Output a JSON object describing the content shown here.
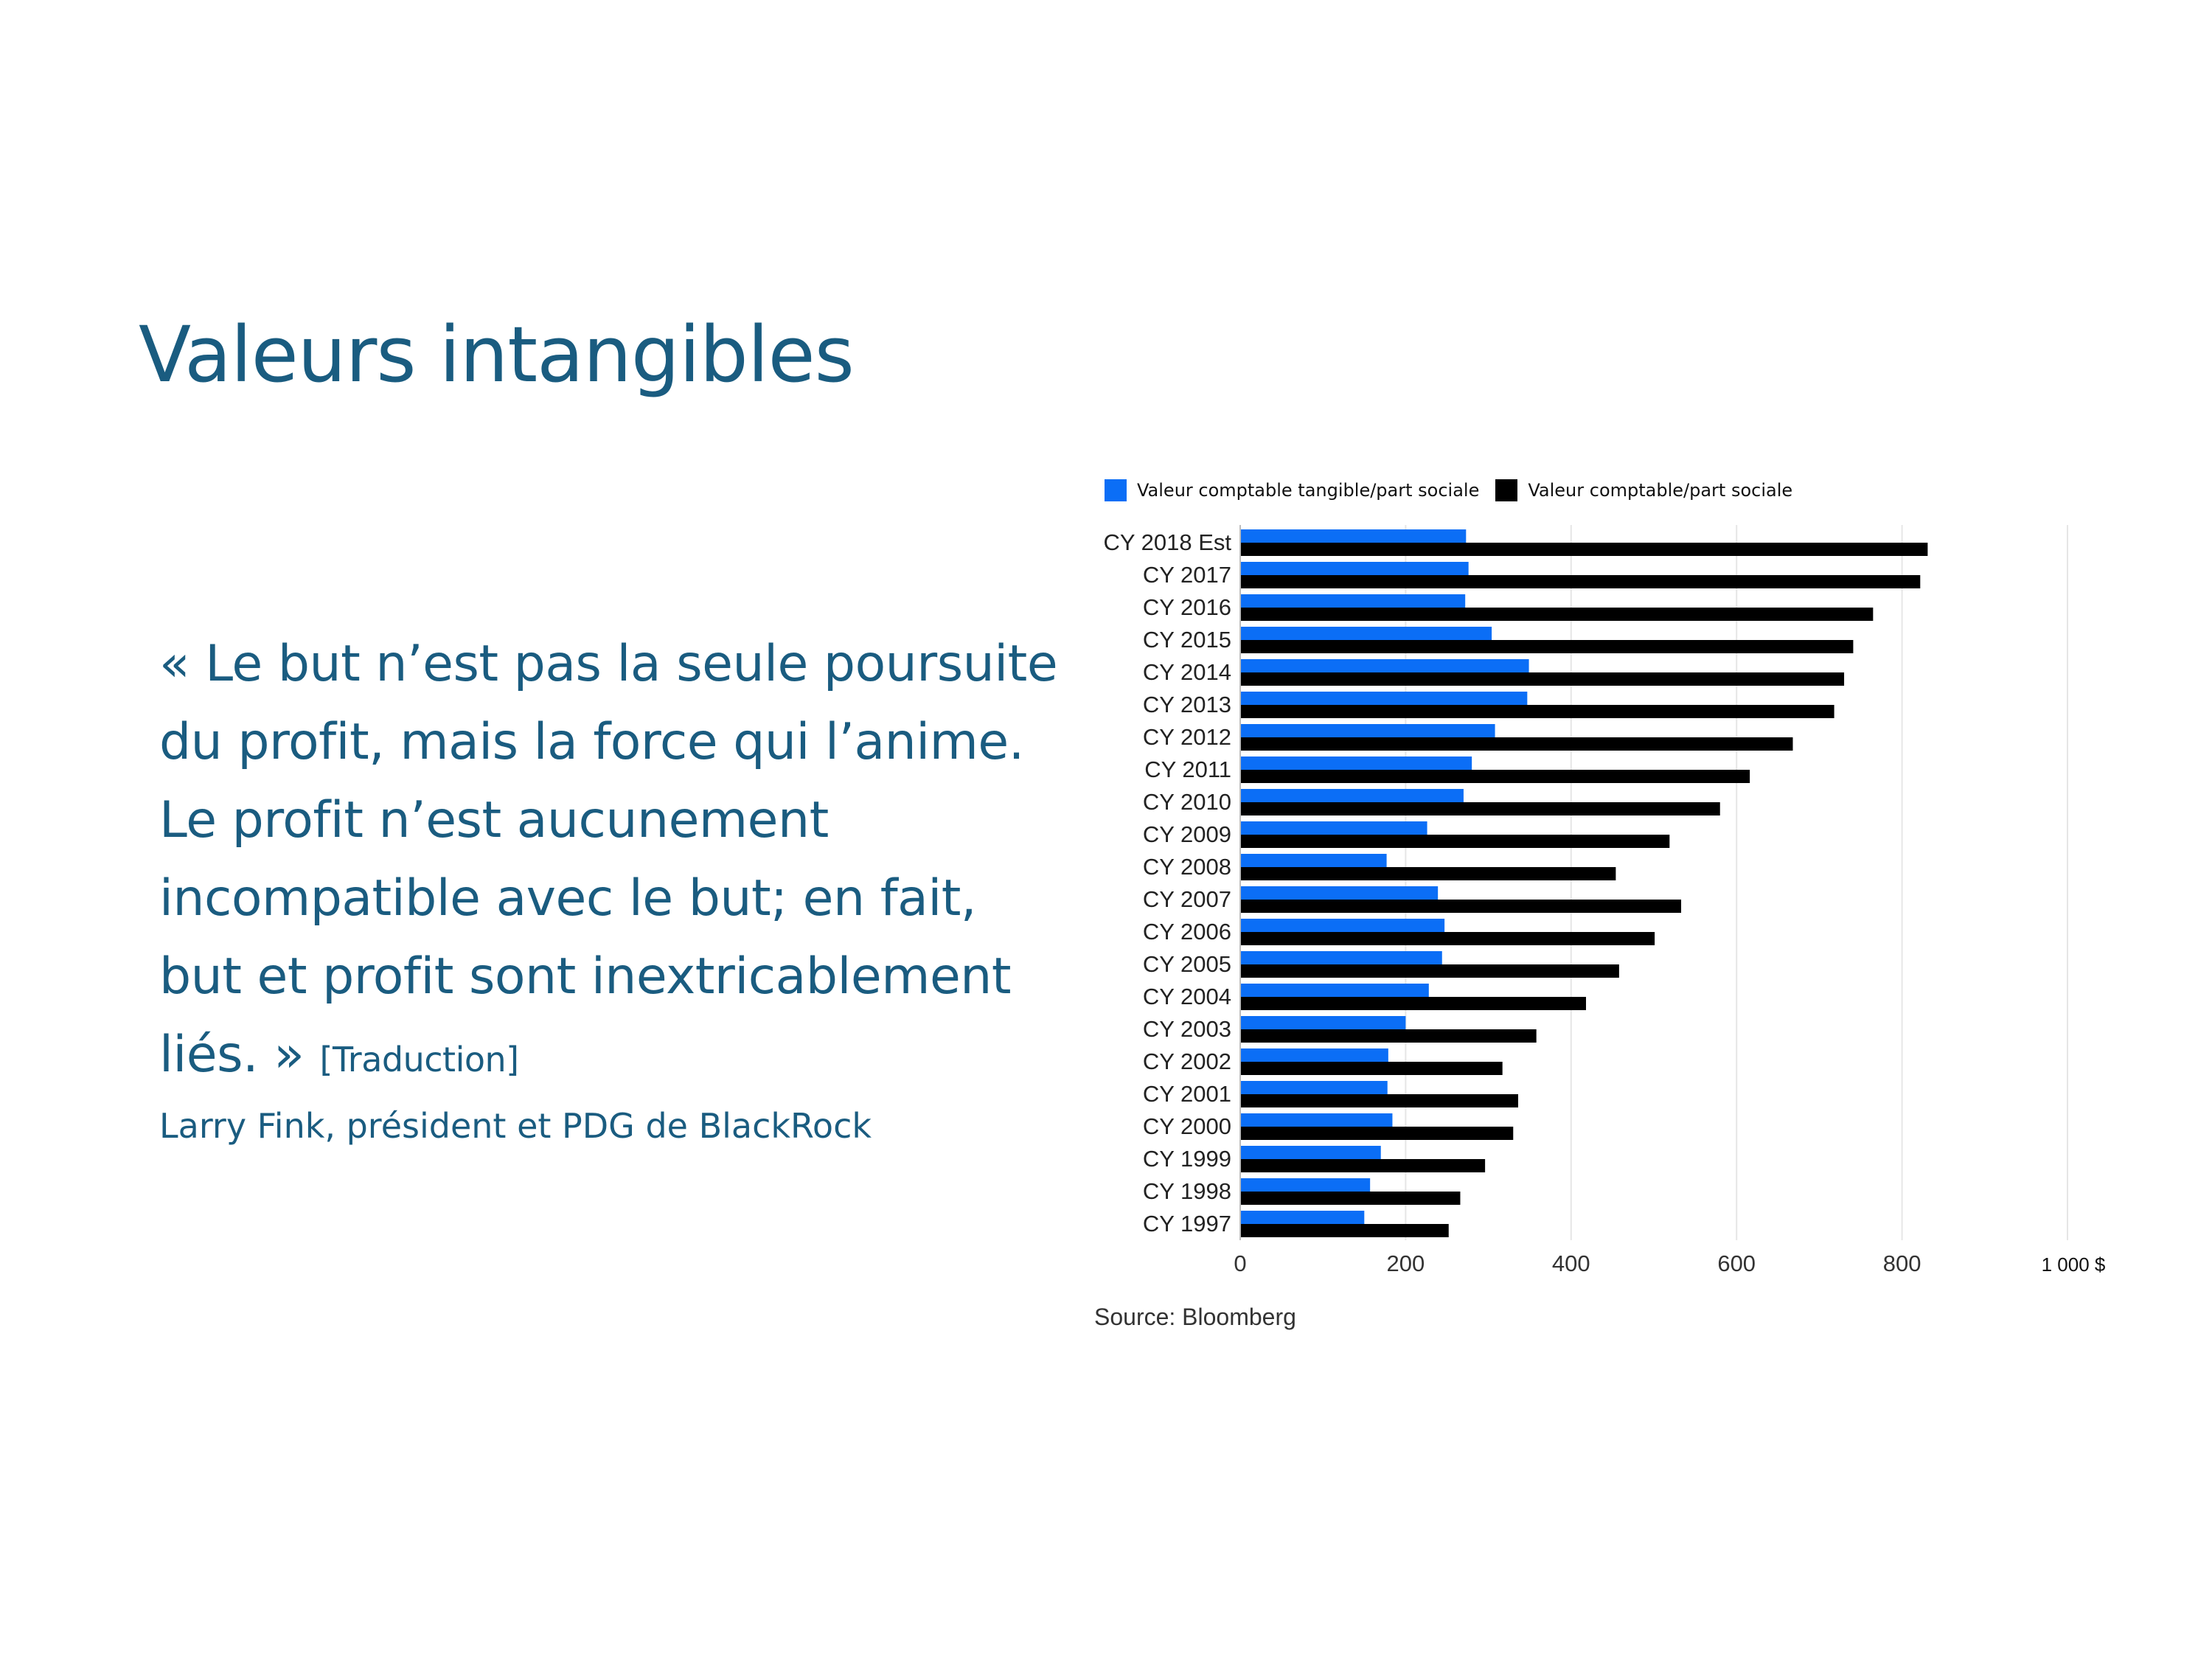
{
  "slide": {
    "title": "Valeurs intangibles",
    "quote": "« Le but n’est pas la seule poursuite du profit, mais la force qui l’anime. Le profit n’est aucunement incompatible avec le but; en fait, but et profit sont inextricablement liés. »",
    "quote_note": "[Traduction]",
    "attribution": "Larry Fink, président et PDG de BlackRock"
  },
  "source": "Source: Bloomberg",
  "colors": {
    "title": "#1a5c80",
    "series_tangible": "#0b6ef6",
    "series_book": "#000000",
    "grid": "#e6e6e6"
  },
  "chart_data": {
    "type": "bar",
    "orientation": "horizontal",
    "title": "",
    "xlabel": "",
    "ylabel": "",
    "categories": [
      "CY 2018 Est",
      "CY 2017",
      "CY 2016",
      "CY 2015",
      "CY 2014",
      "CY 2013",
      "CY 2012",
      "CY 2011",
      "CY 2010",
      "CY 2009",
      "CY 2008",
      "CY 2007",
      "CY 2006",
      "CY 2005",
      "CY 2004",
      "CY 2003",
      "CY 2002",
      "CY 2001",
      "CY 2000",
      "CY 1999",
      "CY 1998",
      "CY 1997"
    ],
    "series": [
      {
        "name": "Valeur comptable tangible/part sociale",
        "color": "#0b6ef6",
        "values": [
          273,
          276,
          272,
          304,
          349,
          347,
          308,
          280,
          270,
          226,
          177,
          239,
          247,
          244,
          228,
          200,
          179,
          178,
          184,
          170,
          157,
          150
        ]
      },
      {
        "name": "Valeur comptable/part sociale",
        "color": "#000000",
        "values": [
          831,
          822,
          765,
          741,
          730,
          718,
          668,
          616,
          580,
          519,
          454,
          533,
          501,
          458,
          418,
          358,
          317,
          336,
          330,
          296,
          266,
          252
        ]
      }
    ],
    "xlim": [
      0,
      1000
    ],
    "xticks": [
      "0",
      "200",
      "400",
      "600",
      "800",
      "1 000 $"
    ],
    "grid": true,
    "legend": "top"
  }
}
